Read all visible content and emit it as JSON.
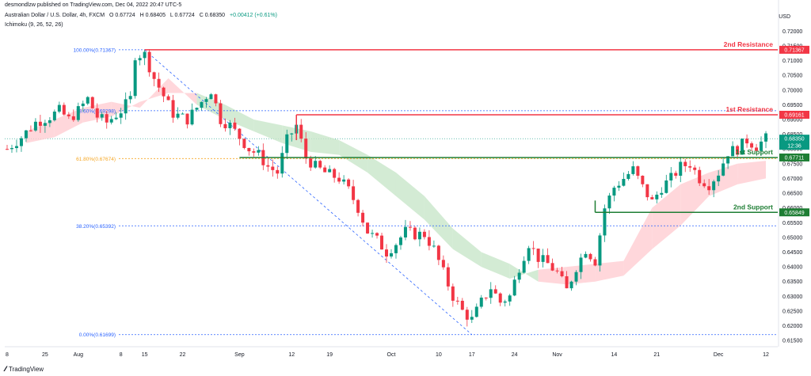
{
  "header": {
    "published": "desmondlzw published on TradingView.com, Dec 04, 2022 20:47 UTC-5",
    "symbol": "Australian Dollar / U.S. Dollar, 4h, FXCM",
    "open": "O 0.67724",
    "high": "H 0.68405",
    "low": "L 0.67724",
    "close": "C 0.68350",
    "change": "+0.00412 (+0.61%)",
    "indicator": "Ichimoku (9, 26, 52, 26)",
    "currency": "USD"
  },
  "colors": {
    "resistance": "#f23645",
    "support": "#1e7e34",
    "fib": "#2962ff",
    "fib61": "#f5a623",
    "bull": "#089981",
    "bear": "#f23645",
    "cloud_bull": "#c8e6c9",
    "cloud_bear": "#ffcdd2"
  },
  "footer": {
    "brand": "TradingView",
    "logo_icon": "tradingview-logo-icon"
  },
  "chart_data": {
    "type": "candlestick",
    "y_axis": {
      "ylim": [
        0.6145,
        0.7225
      ],
      "ticks": [
        0.72,
        0.715,
        0.71,
        0.705,
        0.7,
        0.695,
        0.69,
        0.685,
        0.68,
        0.675,
        0.67,
        0.665,
        0.66,
        0.655,
        0.65,
        0.645,
        0.64,
        0.635,
        0.63,
        0.625,
        0.62,
        0.615
      ],
      "tick_labels": [
        "0.72000",
        "0.71500",
        "0.71000",
        "0.70500",
        "0.70000",
        "0.69500",
        "0.69000",
        "0.68500",
        "0.68000",
        "0.67500",
        "0.67000",
        "0.66500",
        "0.66000",
        "0.65500",
        "0.65000",
        "0.64500",
        "0.64000",
        "0.63500",
        "0.63000",
        "0.62500",
        "0.62000",
        "0.61500"
      ]
    },
    "x_axis": {
      "labels": [
        "8",
        "25",
        "Aug",
        "8",
        "15",
        "22",
        "Sep",
        "12",
        "19",
        "Oct",
        "10",
        "17",
        "24",
        "Nov",
        "14",
        "21",
        "Dec",
        "12"
      ],
      "label_index": [
        0,
        8,
        15,
        24,
        29,
        37,
        49,
        60,
        68,
        81,
        91,
        98,
        107,
        116,
        128,
        137,
        150,
        160
      ],
      "n_bars": 163
    },
    "levels": [
      {
        "name": "2nd Resistance",
        "value": 0.71367,
        "label": "0.71367"
      },
      {
        "name": "1st Resistance",
        "value": 0.69161,
        "label": "0.69161"
      },
      {
        "name": "1st Support",
        "value": 0.67711,
        "label": "0.67711"
      },
      {
        "name": "2nd Support",
        "value": 0.65849,
        "label": "0.65849"
      }
    ],
    "fibonacci": [
      {
        "label": "100.00%(0.71367)",
        "value": 0.71367
      },
      {
        "label": "78.60%(0.69298)",
        "value": 0.69298
      },
      {
        "label": "61.80%(0.67674)",
        "value": 0.67674
      },
      {
        "label": "38.20%(0.65392)",
        "value": 0.65392
      },
      {
        "label": "0.00%(0.61699)",
        "value": 0.61699
      }
    ],
    "last_price": {
      "value": 0.6835,
      "label": "0.68350",
      "countdown": "12:36"
    },
    "price_path": [
      [
        0,
        0.68
      ],
      [
        3,
        0.684
      ],
      [
        6,
        0.689
      ],
      [
        9,
        0.691
      ],
      [
        11,
        0.693
      ],
      [
        13,
        0.69
      ],
      [
        15,
        0.693
      ],
      [
        17,
        0.697
      ],
      [
        19,
        0.691
      ],
      [
        21,
        0.689
      ],
      [
        24,
        0.693
      ],
      [
        26,
        0.697
      ],
      [
        27,
        0.712
      ],
      [
        29,
        0.712
      ],
      [
        31,
        0.704
      ],
      [
        33,
        0.698
      ],
      [
        35,
        0.692
      ],
      [
        38,
        0.69
      ],
      [
        41,
        0.696
      ],
      [
        43,
        0.7
      ],
      [
        45,
        0.69
      ],
      [
        47,
        0.688
      ],
      [
        49,
        0.684
      ],
      [
        51,
        0.68
      ],
      [
        53,
        0.678
      ],
      [
        55,
        0.674
      ],
      [
        57,
        0.672
      ],
      [
        59,
        0.683
      ],
      [
        61,
        0.688
      ],
      [
        63,
        0.677
      ],
      [
        65,
        0.674
      ],
      [
        67,
        0.672
      ],
      [
        70,
        0.67
      ],
      [
        72,
        0.666
      ],
      [
        74,
        0.66
      ],
      [
        76,
        0.652
      ],
      [
        78,
        0.649
      ],
      [
        80,
        0.645
      ],
      [
        82,
        0.648
      ],
      [
        84,
        0.652
      ],
      [
        86,
        0.651
      ],
      [
        88,
        0.651
      ],
      [
        90,
        0.646
      ],
      [
        92,
        0.638
      ],
      [
        94,
        0.63
      ],
      [
        96,
        0.625
      ],
      [
        98,
        0.622
      ],
      [
        100,
        0.628
      ],
      [
        102,
        0.633
      ],
      [
        104,
        0.628
      ],
      [
        106,
        0.63
      ],
      [
        108,
        0.64
      ],
      [
        110,
        0.648
      ],
      [
        112,
        0.643
      ],
      [
        114,
        0.641
      ],
      [
        116,
        0.638
      ],
      [
        118,
        0.632
      ],
      [
        120,
        0.64
      ],
      [
        122,
        0.646
      ],
      [
        124,
        0.642
      ],
      [
        126,
        0.66
      ],
      [
        128,
        0.667
      ],
      [
        130,
        0.67
      ],
      [
        132,
        0.673
      ],
      [
        134,
        0.667
      ],
      [
        136,
        0.662
      ],
      [
        138,
        0.667
      ],
      [
        140,
        0.67
      ],
      [
        142,
        0.674
      ],
      [
        144,
        0.675
      ],
      [
        146,
        0.67
      ],
      [
        148,
        0.668
      ],
      [
        150,
        0.672
      ],
      [
        152,
        0.679
      ],
      [
        154,
        0.68
      ],
      [
        156,
        0.683
      ],
      [
        158,
        0.681
      ],
      [
        160,
        0.6835
      ]
    ],
    "cloud": [
      [
        4,
        0.682,
        0.686
      ],
      [
        10,
        0.684,
        0.69
      ],
      [
        16,
        0.689,
        0.694
      ],
      [
        22,
        0.691,
        0.696
      ],
      [
        28,
        0.696,
        0.694
      ],
      [
        34,
        0.699,
        0.704
      ],
      [
        40,
        0.699,
        0.695
      ],
      [
        46,
        0.695,
        0.69
      ],
      [
        52,
        0.69,
        0.686
      ],
      [
        58,
        0.688,
        0.682
      ],
      [
        64,
        0.686,
        0.679
      ],
      [
        70,
        0.683,
        0.678
      ],
      [
        76,
        0.678,
        0.672
      ],
      [
        82,
        0.672,
        0.664
      ],
      [
        88,
        0.664,
        0.656
      ],
      [
        94,
        0.653,
        0.646
      ],
      [
        100,
        0.645,
        0.64
      ],
      [
        106,
        0.641,
        0.636
      ],
      [
        112,
        0.635,
        0.639
      ],
      [
        118,
        0.634,
        0.64
      ],
      [
        124,
        0.635,
        0.641
      ],
      [
        130,
        0.637,
        0.642
      ],
      [
        136,
        0.646,
        0.66
      ],
      [
        142,
        0.654,
        0.668
      ],
      [
        148,
        0.664,
        0.672
      ],
      [
        154,
        0.668,
        0.675
      ],
      [
        160,
        0.67,
        0.676
      ]
    ],
    "trendline": [
      [
        29,
        0.7136
      ],
      [
        98,
        0.617
      ]
    ]
  }
}
